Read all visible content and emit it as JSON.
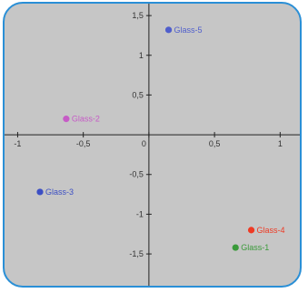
{
  "chart_data": {
    "type": "scatter",
    "title": "",
    "xlabel": "",
    "ylabel": "",
    "xlim": [
      -1.1,
      1.15
    ],
    "ylim": [
      -1.9,
      1.65
    ],
    "grid": false,
    "x_ticks": [
      {
        "value": -1,
        "label": "-1"
      },
      {
        "value": -0.5,
        "label": "-0,5"
      },
      {
        "value": 0,
        "label": "0"
      },
      {
        "value": 0.5,
        "label": "0,5"
      },
      {
        "value": 1,
        "label": "1"
      }
    ],
    "y_ticks": [
      {
        "value": 1.5,
        "label": "1,5"
      },
      {
        "value": 1,
        "label": "1"
      },
      {
        "value": 0.5,
        "label": "0,5"
      },
      {
        "value": -0.5,
        "label": "-0,5"
      },
      {
        "value": -1,
        "label": "-1"
      },
      {
        "value": -1.5,
        "label": "-1,5"
      }
    ],
    "points": [
      {
        "label": "Glass-1",
        "x": 0.66,
        "y": -1.42,
        "color": "#3a9a3a"
      },
      {
        "label": "Glass-2",
        "x": -0.63,
        "y": 0.2,
        "color": "#c65bc6"
      },
      {
        "label": "Glass-3",
        "x": -0.83,
        "y": -0.72,
        "color": "#3c4fc4"
      },
      {
        "label": "Glass-4",
        "x": 0.78,
        "y": -1.2,
        "color": "#ee3a24"
      },
      {
        "label": "Glass-5",
        "x": 0.15,
        "y": 1.32,
        "color": "#4f5ecc"
      }
    ]
  }
}
